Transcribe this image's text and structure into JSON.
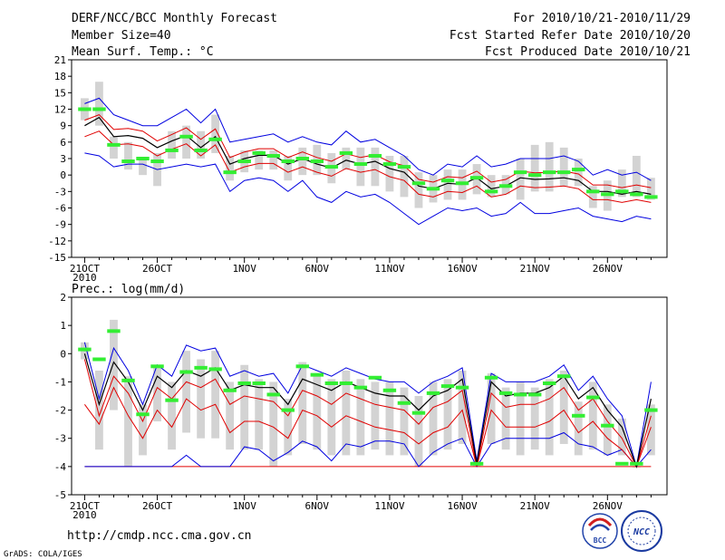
{
  "header": {
    "title": "DERF/NCC/BCC Monthly Forecast",
    "member_size": "Member Size=40",
    "variable": "Mean Surf. Temp.: °C",
    "period": "For 2010/10/21-2010/11/29",
    "fcst_started": "Fcst Started Refer Date 2010/10/20",
    "fcst_produced": "Fcst Produced Date 2010/10/21"
  },
  "footer": {
    "url": "http://cmdp.ncc.cma.gov.cn",
    "credit": "GrADS: COLA/IGES",
    "logo_left": "BCC",
    "logo_right": "NCC"
  },
  "colors": {
    "box": "#d3d3d3",
    "mean": "#000000",
    "inner": "#e00000",
    "outer": "#0000e0",
    "median": "#33ee33"
  },
  "chart_data": [
    {
      "type": "line",
      "title": "Mean Surf. Temp.: °C",
      "days": 40,
      "ylim": [
        -15,
        21
      ],
      "yticks": [
        21,
        18,
        15,
        12,
        9,
        6,
        3,
        0,
        -3,
        -6,
        -9,
        -12,
        -15
      ],
      "xticks": [
        {
          "day": 0,
          "label": "21OCT"
        },
        {
          "day": 5,
          "label": "26OCT"
        },
        {
          "day": 11,
          "label": "1NOV"
        },
        {
          "day": 16,
          "label": "6NOV"
        },
        {
          "day": 21,
          "label": "11NOV"
        },
        {
          "day": 26,
          "label": "16NOV"
        },
        {
          "day": 31,
          "label": "21NOV"
        },
        {
          "day": 36,
          "label": "26NOV"
        }
      ],
      "year_label": "2010",
      "series": {
        "mean": [
          9,
          10.5,
          7,
          7.2,
          6.7,
          5,
          6.2,
          7.2,
          5,
          7,
          2,
          3,
          3.6,
          3.6,
          2,
          3,
          2,
          1.3,
          2.7,
          2,
          2.5,
          1.2,
          0.5,
          -2,
          -2.5,
          -1.5,
          -1.7,
          -0.5,
          -2.5,
          -2,
          -0.5,
          -0.8,
          -0.7,
          -0.5,
          -1,
          -3,
          -3,
          -3.5,
          -3,
          -3.5
        ],
        "upper_inner": [
          10,
          11,
          8.3,
          8.5,
          8,
          6.2,
          7.4,
          8.6,
          6.5,
          8.4,
          3.2,
          4.2,
          4.8,
          4.8,
          3.2,
          4.2,
          3.2,
          2.5,
          3.9,
          3.2,
          3.7,
          2.4,
          1.7,
          -0.8,
          -1.3,
          -0.3,
          -0.5,
          0.7,
          -1.3,
          -0.8,
          0.7,
          0.4,
          0.5,
          0.7,
          0.2,
          -1.8,
          -1.8,
          -2.3,
          -1.8,
          -2.3
        ],
        "lower_inner": [
          7,
          8,
          5.5,
          5.7,
          5.2,
          3.5,
          4.7,
          5.7,
          3.5,
          5.5,
          0.5,
          1.5,
          2.1,
          2.1,
          0.5,
          1.5,
          0.5,
          -0.2,
          1.2,
          0.5,
          1,
          -0.3,
          -1,
          -3.5,
          -4,
          -3,
          -3.2,
          -2,
          -4,
          -3.5,
          -2,
          -2.3,
          -2.2,
          -2,
          -2.5,
          -4.5,
          -4.5,
          -5,
          -4.5,
          -5
        ],
        "upper_outer": [
          13,
          14,
          11,
          10,
          9,
          9,
          10.5,
          12,
          9.5,
          12,
          6,
          6.5,
          7,
          7.5,
          6,
          7,
          6,
          5.5,
          8,
          6,
          6.5,
          5,
          3.5,
          1,
          0,
          2,
          1.5,
          3.5,
          1.5,
          2,
          3,
          3,
          3,
          3.5,
          2.5,
          0,
          1,
          0,
          0.5,
          -1
        ],
        "lower_outer": [
          4,
          3.5,
          1.5,
          2,
          2,
          1,
          1.5,
          2,
          1.5,
          2,
          -3,
          -1,
          -0.5,
          -1,
          -3,
          -1,
          -4,
          -5,
          -3,
          -4,
          -3.5,
          -5,
          -7,
          -9,
          -7.5,
          -6,
          -6.5,
          -6,
          -7.5,
          -7,
          -5,
          -7,
          -7,
          -6.5,
          -6,
          -7.5,
          -8,
          -8.5,
          -7.5,
          -8
        ],
        "box_top": [
          14,
          17,
          7,
          6,
          3,
          4,
          8,
          9,
          8,
          11,
          3.5,
          4.5,
          4.5,
          4.5,
          3.5,
          5,
          5.5,
          4,
          5,
          5,
          5,
          3.5,
          3.5,
          0.5,
          0,
          1,
          1,
          2,
          0,
          0,
          3,
          5.5,
          6,
          5,
          3,
          -2,
          -1,
          1,
          3.5,
          -0.5
        ],
        "box_bottom": [
          10,
          9,
          3,
          1,
          0,
          -2,
          3,
          3,
          3,
          4,
          -1,
          0.5,
          1,
          1,
          -1,
          0,
          0,
          -1.5,
          1,
          -2,
          -2,
          -3,
          -4,
          -6,
          -5,
          -4.5,
          -4.5,
          -3.5,
          -4,
          -3.5,
          -4.5,
          -3,
          -3,
          -2,
          -2,
          -6,
          -6.5,
          -4,
          -4,
          -4.5
        ],
        "median": [
          12,
          12,
          5.5,
          2.5,
          3,
          2.5,
          4.5,
          7,
          4.5,
          6.5,
          0.5,
          2.5,
          4,
          3.5,
          2.5,
          3,
          2.5,
          1.5,
          4,
          2,
          3.5,
          2,
          1.5,
          -1.5,
          -2.5,
          -1,
          -1.5,
          -0.5,
          -3,
          -2,
          0.5,
          0,
          0.5,
          0.5,
          1,
          -3,
          -3.5,
          -3,
          -3.5,
          -4
        ]
      }
    },
    {
      "type": "line",
      "title": "Prec.: log(mm/d)",
      "days": 40,
      "ylim": [
        -5,
        2
      ],
      "yticks": [
        2,
        1,
        0,
        -1,
        -2,
        -3,
        -4,
        -5
      ],
      "xticks": [
        {
          "day": 0,
          "label": "21OCT"
        },
        {
          "day": 5,
          "label": "26OCT"
        },
        {
          "day": 11,
          "label": "1NOV"
        },
        {
          "day": 16,
          "label": "6NOV"
        },
        {
          "day": 21,
          "label": "11NOV"
        },
        {
          "day": 26,
          "label": "16NOV"
        },
        {
          "day": 31,
          "label": "21NOV"
        },
        {
          "day": 36,
          "label": "26NOV"
        }
      ],
      "year_label": "2010",
      "series": {
        "mean": [
          0,
          -1.8,
          -0.3,
          -1,
          -2,
          -0.8,
          -1.2,
          -0.6,
          -0.8,
          -0.5,
          -1.3,
          -1.1,
          -1.2,
          -1.2,
          -1.8,
          -0.9,
          -1.1,
          -1.3,
          -1.0,
          -1.2,
          -1.4,
          -1.5,
          -1.5,
          -2.0,
          -1.5,
          -1.3,
          -0.9,
          -3.9,
          -1.0,
          -1.5,
          -1.4,
          -1.4,
          -1.2,
          -0.8,
          -1.6,
          -1.2,
          -2.0,
          -2.6,
          -4.0,
          -1.6
        ],
        "upper_inner": [
          -0.2,
          -2.2,
          -0.8,
          -1.4,
          -2.4,
          -1.2,
          -1.6,
          -1.0,
          -1.2,
          -0.9,
          -1.8,
          -1.5,
          -1.6,
          -1.7,
          -2.2,
          -1.3,
          -1.5,
          -1.8,
          -1.4,
          -1.6,
          -1.8,
          -1.9,
          -2.0,
          -2.5,
          -1.9,
          -1.7,
          -1.3,
          -4.0,
          -1.4,
          -1.9,
          -1.8,
          -1.8,
          -1.6,
          -1.2,
          -2.0,
          -1.6,
          -2.4,
          -3.0,
          -4.0,
          -2.2
        ],
        "lower_inner": [
          -1.8,
          -2.5,
          -1.2,
          -2.2,
          -3.0,
          -2.0,
          -2.6,
          -1.6,
          -2.0,
          -1.8,
          -2.8,
          -2.4,
          -2.4,
          -2.6,
          -3.0,
          -2.0,
          -2.2,
          -2.6,
          -2.2,
          -2.4,
          -2.6,
          -2.7,
          -2.8,
          -3.2,
          -2.8,
          -2.6,
          -2.0,
          -4.0,
          -2.0,
          -2.6,
          -2.6,
          -2.6,
          -2.4,
          -2.0,
          -2.8,
          -2.4,
          -3.0,
          -3.4,
          -4.0,
          -2.6
        ],
        "upper_outer": [
          0.4,
          -1.6,
          0.2,
          -0.6,
          -1.8,
          -0.4,
          -0.8,
          0.3,
          0.1,
          0.2,
          -0.8,
          -0.6,
          -0.8,
          -0.7,
          -1.4,
          -0.4,
          -0.6,
          -0.8,
          -0.5,
          -0.7,
          -0.9,
          -1.0,
          -1.0,
          -1.4,
          -1.0,
          -0.8,
          -0.5,
          -3.8,
          -0.7,
          -1.0,
          -1.0,
          -1.0,
          -0.8,
          -0.4,
          -1.3,
          -0.8,
          -1.6,
          -2.2,
          -4.0,
          -1.0
        ],
        "lower_outer": [
          -4,
          -4,
          -4,
          -4,
          -4,
          -4,
          -4,
          -3.6,
          -4,
          -4,
          -4,
          -3.3,
          -3.4,
          -3.8,
          -3.5,
          -3.1,
          -3.3,
          -3.8,
          -3.2,
          -3.3,
          -3.1,
          -3.1,
          -3.2,
          -4.0,
          -3.5,
          -3.2,
          -3.0,
          -4.0,
          -3.2,
          -3.0,
          -3.0,
          -3.0,
          -3.0,
          -2.8,
          -3.2,
          -3.3,
          -3.6,
          -3.4,
          -4.0,
          -3.4
        ],
        "box_top": [
          0.4,
          -0.6,
          1.2,
          -0.8,
          -1.8,
          -0.4,
          -1.0,
          0.1,
          -0.2,
          0.1,
          -1.0,
          -0.4,
          -0.9,
          -1.0,
          -1.6,
          -0.3,
          -0.7,
          -0.9,
          -0.6,
          -0.9,
          -1.0,
          -1.0,
          -1.2,
          -1.5,
          -1.0,
          -0.9,
          -0.6,
          -3.8,
          -0.7,
          -1.2,
          -1.0,
          -1.2,
          -0.9,
          -0.6,
          -1.7,
          -1.0,
          -1.8,
          -2.3,
          -4.0,
          -1.8
        ],
        "box_bottom": [
          -0.2,
          -3.4,
          -2.0,
          -4.0,
          -3.6,
          -2.4,
          -3.4,
          -2.8,
          -3.0,
          -3.0,
          -3.4,
          -3.4,
          -3.4,
          -4.0,
          -3.6,
          -3.2,
          -3.4,
          -3.6,
          -3.6,
          -3.6,
          -3.4,
          -3.6,
          -3.6,
          -4.0,
          -3.6,
          -3.4,
          -3.2,
          -4.0,
          -3.2,
          -3.4,
          -3.6,
          -3.4,
          -3.6,
          -3.2,
          -3.6,
          -3.4,
          -3.6,
          -3.6,
          -4.0,
          -3.6
        ],
        "median": [
          0.15,
          -0.2,
          0.8,
          -0.95,
          -2.15,
          -0.45,
          -1.65,
          -0.65,
          -0.5,
          -0.55,
          -1.3,
          -1.05,
          -1.05,
          -1.45,
          -2.0,
          -0.45,
          -0.75,
          -1.05,
          -1.05,
          -1.2,
          -0.85,
          -1.3,
          -1.75,
          -2.1,
          -1.4,
          -1.15,
          -1.2,
          -3.9,
          -0.85,
          -1.4,
          -1.45,
          -1.45,
          -1.05,
          -0.8,
          -2.2,
          -1.55,
          -2.55,
          -3.9,
          -3.9,
          -2.0
        ],
        "floor": -4
      }
    }
  ]
}
